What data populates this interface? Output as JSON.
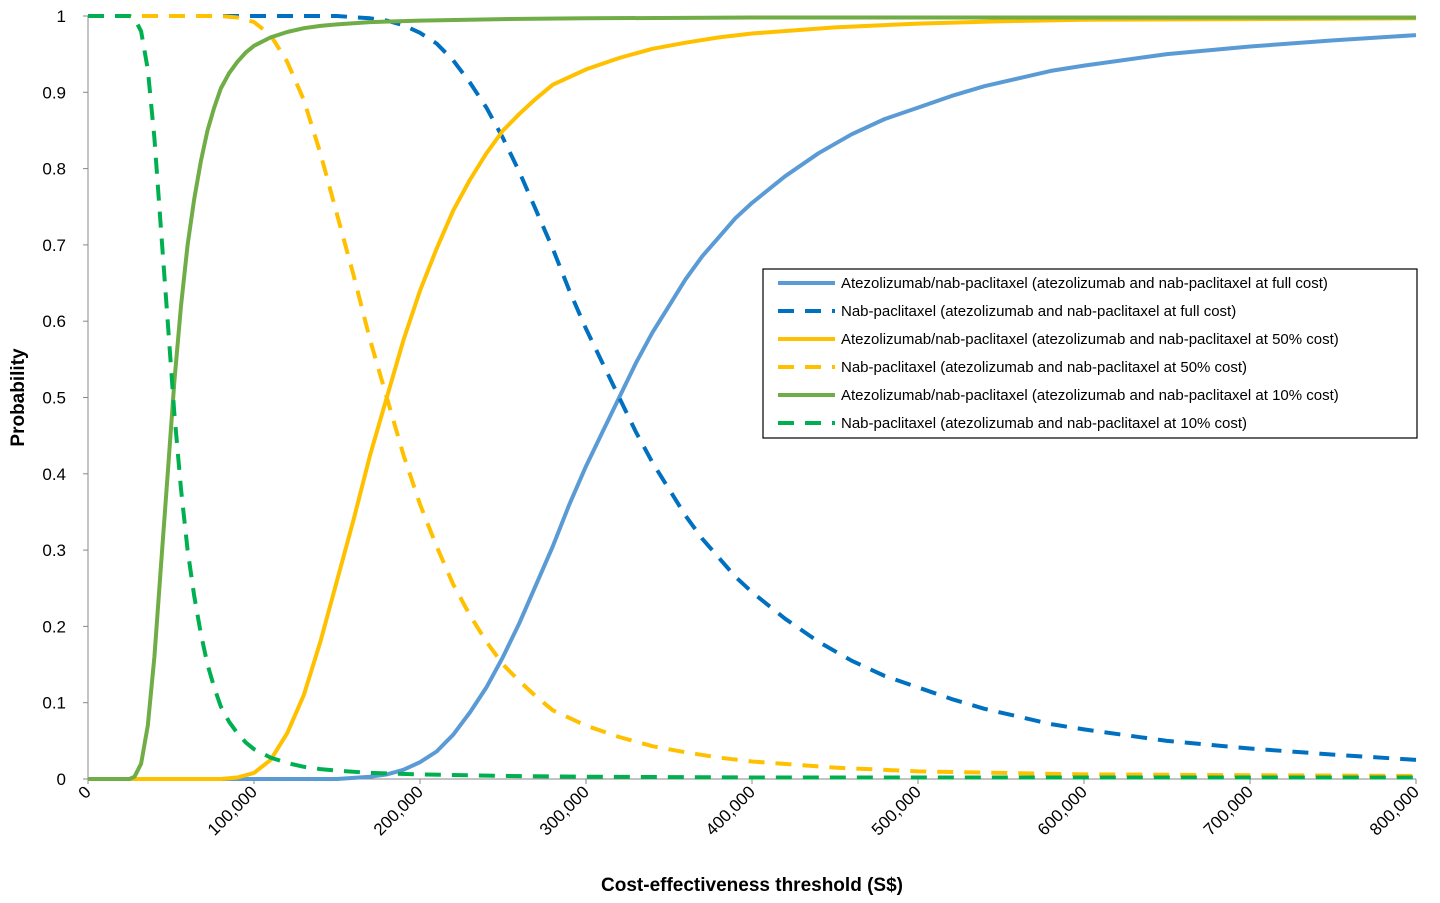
{
  "chart_data": {
    "type": "line",
    "title": "",
    "xlabel": "Cost-effectiveness threshold (S$)",
    "ylabel": "Probability",
    "xlim": [
      0,
      800000
    ],
    "ylim": [
      0,
      1
    ],
    "x_ticks": [
      0,
      100000,
      200000,
      300000,
      400000,
      500000,
      600000,
      700000,
      800000
    ],
    "x_tick_labels": [
      "0",
      "100,000",
      "200,000",
      "300,000",
      "400,000",
      "500,000",
      "600,000",
      "700,000",
      "800,000"
    ],
    "y_ticks": [
      0,
      0.1,
      0.2,
      0.3,
      0.4,
      0.5,
      0.6,
      0.7,
      0.8,
      0.9,
      1
    ],
    "y_tick_labels": [
      "0",
      "0.1",
      "0.2",
      "0.3",
      "0.4",
      "0.5",
      "0.6",
      "0.7",
      "0.8",
      "0.9",
      "1"
    ],
    "grid": false,
    "legend_position": "right",
    "series": [
      {
        "name": "Atezolizumab/nab-paclitaxel (atezolizumab and nab-paclitaxel at full cost)",
        "color": "#5B9BD5",
        "dash": "solid",
        "x": [
          0,
          150000,
          170000,
          180000,
          190000,
          200000,
          210000,
          220000,
          230000,
          240000,
          250000,
          260000,
          270000,
          280000,
          290000,
          300000,
          310000,
          320000,
          330000,
          340000,
          350000,
          360000,
          370000,
          380000,
          390000,
          400000,
          420000,
          440000,
          460000,
          480000,
          500000,
          520000,
          540000,
          560000,
          580000,
          600000,
          650000,
          700000,
          750000,
          800000
        ],
        "y": [
          0,
          0,
          0.003,
          0.006,
          0.012,
          0.022,
          0.036,
          0.058,
          0.087,
          0.12,
          0.16,
          0.205,
          0.255,
          0.305,
          0.36,
          0.41,
          0.455,
          0.5,
          0.545,
          0.585,
          0.62,
          0.655,
          0.685,
          0.71,
          0.735,
          0.755,
          0.79,
          0.82,
          0.845,
          0.865,
          0.88,
          0.895,
          0.908,
          0.918,
          0.928,
          0.935,
          0.95,
          0.96,
          0.968,
          0.975
        ]
      },
      {
        "name": "Nab-paclitaxel (atezolizumab and nab-paclitaxel at full cost)",
        "color": "#0070C0",
        "dash": "dashed",
        "x": [
          0,
          150000,
          170000,
          180000,
          190000,
          200000,
          210000,
          220000,
          230000,
          240000,
          250000,
          260000,
          270000,
          280000,
          290000,
          300000,
          310000,
          320000,
          330000,
          340000,
          350000,
          360000,
          370000,
          380000,
          390000,
          400000,
          420000,
          440000,
          460000,
          480000,
          500000,
          520000,
          540000,
          560000,
          580000,
          600000,
          650000,
          700000,
          750000,
          800000
        ],
        "y": [
          1,
          1,
          0.997,
          0.994,
          0.988,
          0.978,
          0.964,
          0.942,
          0.913,
          0.88,
          0.84,
          0.795,
          0.745,
          0.695,
          0.64,
          0.59,
          0.545,
          0.5,
          0.455,
          0.415,
          0.38,
          0.345,
          0.315,
          0.29,
          0.265,
          0.245,
          0.21,
          0.18,
          0.155,
          0.135,
          0.12,
          0.105,
          0.092,
          0.082,
          0.072,
          0.065,
          0.05,
          0.04,
          0.032,
          0.025
        ]
      },
      {
        "name": "Atezolizumab/nab-paclitaxel (atezolizumab and nab-paclitaxel at 50% cost)",
        "color": "#FFC000",
        "dash": "solid",
        "x": [
          0,
          80000,
          90000,
          100000,
          110000,
          120000,
          130000,
          140000,
          150000,
          160000,
          170000,
          180000,
          190000,
          200000,
          210000,
          220000,
          230000,
          240000,
          250000,
          260000,
          270000,
          280000,
          300000,
          320000,
          340000,
          360000,
          380000,
          400000,
          450000,
          500000,
          550000,
          600000,
          700000,
          800000
        ],
        "y": [
          0,
          0,
          0.002,
          0.008,
          0.025,
          0.06,
          0.11,
          0.18,
          0.26,
          0.34,
          0.425,
          0.5,
          0.575,
          0.64,
          0.695,
          0.745,
          0.785,
          0.82,
          0.85,
          0.872,
          0.892,
          0.91,
          0.93,
          0.945,
          0.957,
          0.965,
          0.972,
          0.977,
          0.985,
          0.99,
          0.993,
          0.995,
          0.996,
          0.997
        ]
      },
      {
        "name": "Nab-paclitaxel (atezolizumab and nab-paclitaxel at 50% cost)",
        "color": "#FFC000",
        "dash": "dashed",
        "x": [
          0,
          80000,
          90000,
          100000,
          110000,
          120000,
          130000,
          140000,
          150000,
          160000,
          170000,
          180000,
          190000,
          200000,
          210000,
          220000,
          230000,
          240000,
          250000,
          260000,
          270000,
          280000,
          300000,
          320000,
          340000,
          360000,
          380000,
          400000,
          450000,
          500000,
          550000,
          600000,
          700000,
          800000
        ],
        "y": [
          1,
          1,
          0.998,
          0.992,
          0.975,
          0.94,
          0.89,
          0.82,
          0.74,
          0.66,
          0.575,
          0.5,
          0.425,
          0.36,
          0.305,
          0.255,
          0.215,
          0.18,
          0.15,
          0.128,
          0.108,
          0.09,
          0.07,
          0.055,
          0.043,
          0.035,
          0.028,
          0.023,
          0.015,
          0.01,
          0.008,
          0.006,
          0.005,
          0.004
        ]
      },
      {
        "name": "Atezolizumab/nab-paclitaxel (atezolizumab and nab-paclitaxel at 10% cost)",
        "color": "#70AD47",
        "dash": "solid",
        "x": [
          0,
          25000,
          28000,
          32000,
          36000,
          40000,
          44000,
          48000,
          52000,
          56000,
          60000,
          64000,
          68000,
          72000,
          76000,
          80000,
          85000,
          90000,
          95000,
          100000,
          110000,
          120000,
          130000,
          140000,
          150000,
          170000,
          200000,
          250000,
          300000,
          400000,
          500000,
          600000,
          800000
        ],
        "y": [
          0,
          0,
          0.003,
          0.02,
          0.07,
          0.16,
          0.28,
          0.4,
          0.52,
          0.62,
          0.7,
          0.76,
          0.81,
          0.85,
          0.88,
          0.905,
          0.925,
          0.94,
          0.952,
          0.961,
          0.972,
          0.979,
          0.984,
          0.987,
          0.989,
          0.992,
          0.994,
          0.996,
          0.997,
          0.998,
          0.998,
          0.998,
          0.998
        ]
      },
      {
        "name": "Nab-paclitaxel (atezolizumab and nab-paclitaxel at 10% cost)",
        "color": "#00B050",
        "dash": "dashed",
        "x": [
          0,
          25000,
          28000,
          32000,
          36000,
          40000,
          44000,
          48000,
          52000,
          56000,
          60000,
          64000,
          68000,
          72000,
          76000,
          80000,
          85000,
          90000,
          95000,
          100000,
          110000,
          120000,
          130000,
          140000,
          150000,
          170000,
          200000,
          250000,
          300000,
          400000,
          500000,
          600000,
          800000
        ],
        "y": [
          1,
          1,
          0.997,
          0.98,
          0.93,
          0.84,
          0.72,
          0.6,
          0.48,
          0.38,
          0.3,
          0.24,
          0.19,
          0.15,
          0.12,
          0.095,
          0.075,
          0.06,
          0.048,
          0.039,
          0.028,
          0.021,
          0.016,
          0.013,
          0.011,
          0.008,
          0.006,
          0.004,
          0.003,
          0.002,
          0.002,
          0.002,
          0.002
        ]
      }
    ]
  }
}
